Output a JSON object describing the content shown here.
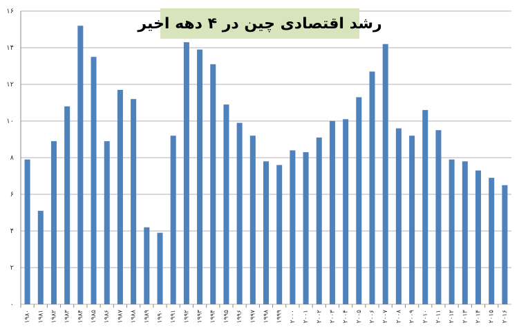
{
  "chart_data": {
    "type": "bar",
    "title": "رشد اقتصادی چین در ۴ دهه اخیر",
    "categories": [
      "۱۹۸۰",
      "۱۹۸۱",
      "۱۹۸۲",
      "۱۹۸۳",
      "۱۹۸۴",
      "۱۹۸۵",
      "۱۹۸۶",
      "۱۹۸۷",
      "۱۹۸۸",
      "۱۹۸۹",
      "۱۹۹۰",
      "۱۹۹۱",
      "۱۹۹۲",
      "۱۹۹۳",
      "۱۹۹۴",
      "۱۹۹۵",
      "۱۹۹۶",
      "۱۹۹۷",
      "۱۹۹۸",
      "۱۹۹۹",
      "۲۰۰۰",
      "۲۰۰۱",
      "۲۰۰۲",
      "۲۰۰۳",
      "۲۰۰۴",
      "۲۰۰۵",
      "۲۰۰۶",
      "۲۰۰۷",
      "۲۰۰۸",
      "۲۰۰۹",
      "۲۰۱۰",
      "۲۰۱۱",
      "۲۰۱۲",
      "۲۰۱۳",
      "۲۰۱۴",
      "۲۰۱۵",
      "۲۰۱۶"
    ],
    "values": [
      7.9,
      5.1,
      8.9,
      10.8,
      15.2,
      13.5,
      8.9,
      11.7,
      11.2,
      4.2,
      3.9,
      9.2,
      14.3,
      13.9,
      13.1,
      10.9,
      9.9,
      9.2,
      7.8,
      7.6,
      8.4,
      8.3,
      9.1,
      10.0,
      10.1,
      11.3,
      12.7,
      14.2,
      9.6,
      9.2,
      10.6,
      9.5,
      7.9,
      7.8,
      7.3,
      6.9,
      6.5
    ],
    "color": "#4f81bd",
    "ylim": [
      0,
      16
    ],
    "yticks": [
      {
        "value": 0,
        "label": "۰"
      },
      {
        "value": 2,
        "label": "۲"
      },
      {
        "value": 4,
        "label": "۴"
      },
      {
        "value": 6,
        "label": "۶"
      },
      {
        "value": 8,
        "label": "۸"
      },
      {
        "value": 10,
        "label": "۱۰"
      },
      {
        "value": 12,
        "label": "۱۲"
      },
      {
        "value": 14,
        "label": "۱۴"
      },
      {
        "value": 16,
        "label": "۱۶"
      }
    ],
    "grid": true
  }
}
